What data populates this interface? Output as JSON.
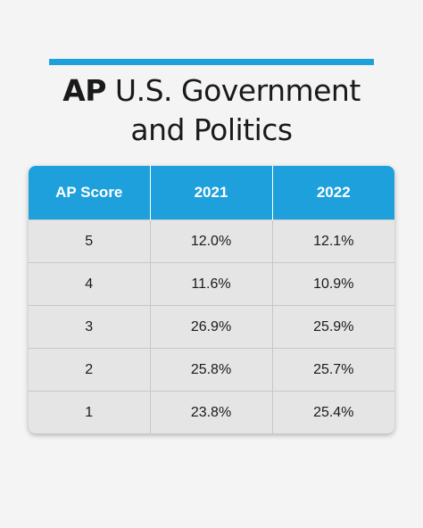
{
  "title": {
    "bold": "AP",
    "rest_line1": "U.S. Government",
    "line2": "and Politics"
  },
  "colors": {
    "accent": "#1ea0dc",
    "background": "#f4f4f4",
    "cell_background": "#e5e5e5",
    "text": "#1a1a1a"
  },
  "chart_data": {
    "type": "table",
    "title": "AP U.S. Government and Politics",
    "columns": [
      "AP Score",
      "2021",
      "2022"
    ],
    "rows": [
      [
        "5",
        "12.0%",
        "12.1%"
      ],
      [
        "4",
        "11.6%",
        "10.9%"
      ],
      [
        "3",
        "26.9%",
        "25.9%"
      ],
      [
        "2",
        "25.8%",
        "25.7%"
      ],
      [
        "1",
        "23.8%",
        "25.4%"
      ]
    ]
  }
}
